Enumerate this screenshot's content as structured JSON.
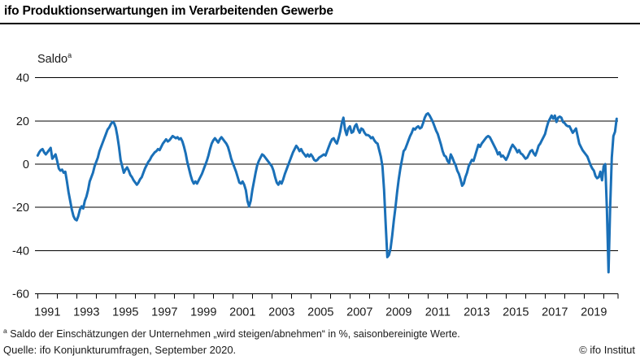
{
  "header": {
    "title": "ifo Produktionserwartungen im Verarbeitenden Gewerbe"
  },
  "chart": {
    "y_axis_title": {
      "text": "Saldo",
      "superscript": "a"
    }
  },
  "footnote": {
    "superscript": "a",
    "text": " Saldo der Einschätzungen der Unternehmen „wird steigen/abnehmen“ in %, saisonbereinigte Werte."
  },
  "source": "Quelle: ifo Konjunkturumfragen, September 2020.",
  "copyright": "© ifo Institut",
  "colors": {
    "line": "#1a70b8",
    "grid": "#000000",
    "text": "#1a1a1a"
  },
  "chart_data": {
    "type": "line",
    "title": "ifo Produktionserwartungen im Verarbeitenden Gewerbe",
    "ylabel": "Saldo",
    "xlabel": "",
    "ylim": [
      -60,
      40
    ],
    "y_ticks": [
      40,
      20,
      0,
      -20,
      -40,
      -60
    ],
    "x_tick_years_labeled": [
      1991,
      1993,
      1995,
      1997,
      1999,
      2001,
      2003,
      2005,
      2007,
      2009,
      2011,
      2013,
      2015,
      2017,
      2019
    ],
    "x_start": "1991-01",
    "x_end": "2020-09",
    "frequency": "monthly",
    "grid": true,
    "legend": "none",
    "series": [
      {
        "name": "Produktionserwartungen Verarbeitendes Gewerbe (Saldo, saisonbereinigt)",
        "monthly_by_year": {
          "1991": [
            4.0,
            5.5,
            6.5,
            7.0,
            5.5,
            4.5,
            5.5,
            6.5,
            7.5,
            2.5,
            3.5,
            4.5
          ],
          "1992": [
            1.5,
            -2.0,
            -3.0,
            -2.5,
            -4.0,
            -3.5,
            -8.0,
            -13.0,
            -17.0,
            -21.0,
            -24.0,
            -25.5
          ],
          "1993": [
            -26.0,
            -24.0,
            -21.0,
            -19.5,
            -20.5,
            -17.0,
            -15.0,
            -12.0,
            -8.0,
            -6.0,
            -4.0,
            -1.0
          ],
          "1994": [
            1.0,
            3.0,
            6.0,
            8.0,
            10.0,
            12.0,
            14.0,
            16.0,
            17.0,
            18.5,
            19.5,
            19.0
          ],
          "1995": [
            17.0,
            13.0,
            8.0,
            2.0,
            -1.0,
            -4.0,
            -2.5,
            -1.5,
            -3.0,
            -5.0,
            -6.0,
            -7.5
          ],
          "1996": [
            -8.5,
            -9.5,
            -8.5,
            -7.0,
            -6.0,
            -4.0,
            -2.0,
            -0.5,
            1.0,
            2.0,
            3.5,
            4.5
          ],
          "1997": [
            5.5,
            6.0,
            7.0,
            6.5,
            8.0,
            9.5,
            10.5,
            11.5,
            10.5,
            11.0,
            12.0,
            13.0
          ],
          "1998": [
            12.5,
            12.0,
            12.5,
            11.5,
            12.0,
            10.5,
            8.0,
            5.0,
            1.0,
            -2.0,
            -5.0,
            -7.5
          ],
          "1999": [
            -9.0,
            -8.0,
            -9.0,
            -7.5,
            -6.0,
            -4.5,
            -2.5,
            -0.5,
            1.5,
            4.0,
            7.0,
            9.5
          ],
          "2000": [
            11.0,
            12.0,
            11.0,
            10.0,
            11.5,
            12.5,
            11.5,
            10.5,
            9.5,
            8.0,
            5.5,
            2.5
          ],
          "2001": [
            0.5,
            -1.5,
            -3.5,
            -6.0,
            -8.5,
            -9.0,
            -8.0,
            -9.5,
            -12.0,
            -17.0,
            -19.5,
            -17.0
          ],
          "2002": [
            -12.0,
            -8.0,
            -4.0,
            -0.5,
            1.5,
            3.0,
            4.5,
            4.0,
            3.0,
            2.0,
            1.0,
            0.0
          ],
          "2003": [
            -1.0,
            -3.0,
            -6.0,
            -8.5,
            -9.5,
            -8.0,
            -9.0,
            -7.0,
            -4.5,
            -2.5,
            -0.5,
            1.5
          ],
          "2004": [
            3.5,
            5.5,
            7.0,
            8.5,
            7.5,
            6.0,
            7.0,
            5.5,
            4.5,
            3.5,
            4.5,
            3.5
          ],
          "2005": [
            4.5,
            3.5,
            2.0,
            1.5,
            2.0,
            3.0,
            3.5,
            4.0,
            4.5,
            4.0,
            6.0,
            8.0
          ],
          "2006": [
            10.0,
            11.5,
            12.0,
            10.5,
            9.5,
            12.0,
            15.0,
            19.0,
            21.5,
            16.0,
            13.5,
            16.5
          ],
          "2007": [
            17.5,
            14.5,
            15.0,
            17.5,
            18.5,
            16.0,
            14.5,
            16.5,
            16.0,
            14.5,
            13.5,
            13.5
          ],
          "2008": [
            13.0,
            12.0,
            12.5,
            11.0,
            10.0,
            9.5,
            6.5,
            3.5,
            -1.0,
            -12.0,
            -28.0,
            -43.0
          ],
          "2009": [
            -42.0,
            -39.0,
            -33.0,
            -26.0,
            -20.0,
            -13.0,
            -7.0,
            -2.0,
            2.0,
            6.0,
            7.0,
            9.0
          ],
          "2010": [
            11.0,
            13.0,
            14.5,
            16.5,
            16.0,
            17.0,
            17.5,
            16.5,
            17.0,
            19.0,
            21.5,
            23.0
          ],
          "2011": [
            23.5,
            22.5,
            21.0,
            19.5,
            17.5,
            15.5,
            14.0,
            11.5,
            9.0,
            6.0,
            4.0,
            3.5
          ],
          "2012": [
            1.5,
            0.5,
            4.5,
            3.0,
            1.0,
            -0.5,
            -3.0,
            -4.5,
            -7.0,
            -10.0,
            -9.0,
            -6.0
          ],
          "2013": [
            -4.0,
            -1.0,
            0.5,
            2.0,
            1.5,
            4.0,
            6.5,
            9.0,
            8.0,
            9.5,
            10.5,
            11.5
          ],
          "2014": [
            12.5,
            13.0,
            12.5,
            11.0,
            9.5,
            8.0,
            6.5,
            4.5,
            5.5,
            3.5,
            4.0,
            3.0
          ],
          "2015": [
            2.0,
            3.5,
            5.5,
            7.5,
            9.0,
            8.0,
            7.0,
            5.5,
            6.5,
            5.0,
            4.5,
            3.5
          ],
          "2016": [
            2.5,
            3.0,
            4.5,
            6.0,
            6.5,
            5.0,
            4.0,
            6.0,
            8.5,
            9.5,
            11.0,
            12.5
          ],
          "2017": [
            14.0,
            17.0,
            19.5,
            21.0,
            22.5,
            21.0,
            22.5,
            19.5,
            21.5,
            22.0,
            21.5,
            19.5
          ],
          "2018": [
            19.0,
            18.0,
            17.5,
            17.5,
            16.0,
            14.5,
            15.5,
            16.5,
            13.0,
            9.5,
            8.0,
            6.5
          ],
          "2019": [
            5.5,
            4.5,
            3.5,
            1.5,
            -0.5,
            -2.0,
            -3.0,
            -5.5,
            -6.5,
            -6.0,
            -3.5,
            -7.5
          ],
          "2020": [
            -1.0,
            0.0,
            -21.0,
            -50.0,
            -20.0,
            3.0,
            13.0,
            15.0,
            21.0
          ]
        }
      }
    ]
  }
}
